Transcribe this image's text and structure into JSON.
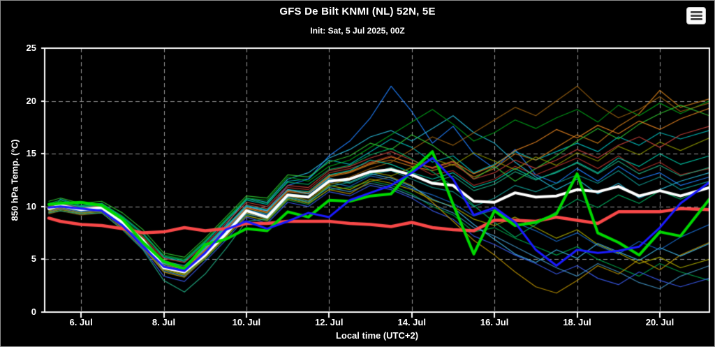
{
  "header": {
    "title": "GFS De Bilt KNMI (NL) 52N, 5E",
    "subtitle": "Init: Sat, 5 Jul 2025, 00Z"
  },
  "menu": {
    "icon": "hamburger-menu-icon"
  },
  "chart_data": {
    "type": "line",
    "title": "GFS De Bilt KNMI (NL) 52N, 5E",
    "subtitle": "Init: Sat, 5 Jul 2025, 00Z",
    "xlabel": "Local time (UTC+2)",
    "ylabel": "850 hPa Temp. (°C)",
    "background": "#000000",
    "xlim": [
      5.12,
      21.2
    ],
    "ylim": [
      0,
      25
    ],
    "x_days_of_july": [
      5.22,
      5.5,
      6,
      6.5,
      7,
      7.5,
      8,
      8.5,
      9,
      9.5,
      10,
      10.5,
      11,
      11.5,
      12,
      12.5,
      13,
      13.5,
      14,
      14.5,
      15,
      15.5,
      16,
      16.5,
      17,
      17.5,
      18,
      18.5,
      19,
      19.5,
      20,
      20.5,
      21.2
    ],
    "x_ticks": [
      {
        "day": 6,
        "label": "6. Jul"
      },
      {
        "day": 8,
        "label": "8. Jul"
      },
      {
        "day": 10,
        "label": "10. Jul"
      },
      {
        "day": 12,
        "label": "12. Jul"
      },
      {
        "day": 14,
        "label": "14. Jul"
      },
      {
        "day": 16,
        "label": "16. Jul"
      },
      {
        "day": 18,
        "label": "18. Jul"
      },
      {
        "day": 20,
        "label": "20. Jul"
      }
    ],
    "y_ticks": [
      0,
      5,
      10,
      15,
      20,
      25
    ],
    "grid": {
      "h_values": [
        5,
        10,
        15,
        20
      ],
      "v_days": [
        6,
        8,
        10,
        12,
        14,
        16,
        18,
        20
      ],
      "style": "dashed",
      "color": "#9a9a9a"
    },
    "axis_color": "#ffffff",
    "main_series": [
      {
        "name": "climate-mean",
        "color": "#f84848",
        "width": 4.5,
        "values": [
          8.9,
          8.6,
          8.3,
          8.2,
          7.9,
          7.5,
          7.6,
          8.0,
          7.7,
          7.9,
          8.4,
          8.4,
          8.6,
          8.6,
          8.6,
          8.4,
          8.3,
          8.1,
          8.5,
          8.0,
          7.8,
          7.7,
          8.7,
          8.7,
          8.6,
          9.0,
          8.7,
          8.4,
          9.5,
          9.5,
          9.5,
          9.8,
          9.7
        ]
      },
      {
        "name": "ensemble-mean",
        "color": "#ffffff",
        "width": 4,
        "values": [
          9.8,
          10.1,
          9.7,
          9.9,
          8.5,
          6.8,
          4.2,
          3.8,
          5.4,
          7.4,
          9.6,
          9.0,
          11.1,
          10.9,
          12.4,
          12.6,
          13.3,
          13.5,
          13.0,
          12.2,
          12.0,
          10.5,
          10.4,
          11.3,
          10.9,
          11.0,
          11.6,
          11.4,
          11.9,
          11.0,
          11.5,
          11.0,
          11.8
        ]
      },
      {
        "name": "operational-run",
        "color": "#00d800",
        "width": 4,
        "values": [
          10.2,
          10.3,
          10.4,
          10.1,
          8.8,
          6.6,
          4.8,
          4.1,
          6.4,
          6.9,
          7.9,
          7.7,
          9.5,
          9.0,
          10.6,
          10.5,
          11.0,
          11.2,
          13.4,
          15.2,
          10.2,
          5.5,
          9.6,
          8.2,
          8.5,
          9.3,
          13.1,
          7.5,
          6.6,
          5.4,
          7.6,
          7.2,
          10.7
        ]
      },
      {
        "name": "control-run",
        "color": "#1a1aff",
        "width": 3,
        "values": [
          9.9,
          10.0,
          9.8,
          9.6,
          8.2,
          6.2,
          4.3,
          3.9,
          5.6,
          7.8,
          8.6,
          7.9,
          8.6,
          9.4,
          9.0,
          10.6,
          11.3,
          12.0,
          13.2,
          14.6,
          12.6,
          9.2,
          9.9,
          8.5,
          5.9,
          4.4,
          5.9,
          5.6,
          5.8,
          6.2,
          8.0,
          10.3,
          12.3
        ]
      }
    ],
    "members": [
      {
        "color": "#00b8b8",
        "values": [
          9.4,
          10.7,
          10.1,
          10.3,
          9.0,
          7.4,
          5.2,
          4.8,
          6.6,
          8.6,
          10.6,
          10.2,
          12.4,
          12.6,
          14.4,
          14.0,
          15.2,
          16.4,
          15.6,
          14.2,
          14.8,
          13.2,
          14.0,
          15.2,
          14.4,
          15.2,
          16.0,
          15.2,
          16.6,
          15.8,
          17.0,
          16.4,
          17.2
        ]
      },
      {
        "color": "#2080ff",
        "values": [
          9.6,
          9.9,
          9.5,
          9.7,
          8.1,
          6.2,
          3.9,
          3.4,
          5.2,
          7.6,
          10.0,
          9.6,
          12.0,
          12.6,
          14.8,
          16.2,
          18.4,
          21.4,
          19.0,
          16.0,
          17.6,
          15.0,
          13.6,
          15.4,
          13.0,
          12.2,
          13.6,
          12.4,
          13.8,
          12.6,
          13.2,
          12.0,
          12.8
        ]
      },
      {
        "color": "#00a048",
        "values": [
          10.0,
          10.2,
          9.8,
          10.0,
          8.6,
          6.6,
          4.4,
          3.6,
          5.0,
          7.0,
          9.2,
          8.6,
          10.6,
          10.2,
          11.6,
          11.8,
          12.4,
          12.0,
          11.2,
          10.0,
          9.2,
          7.6,
          8.0,
          7.0,
          6.2,
          5.4,
          6.2,
          5.0,
          4.2,
          3.4,
          4.6,
          3.8,
          3.0
        ]
      },
      {
        "color": "#c87818",
        "values": [
          9.4,
          9.8,
          9.3,
          9.6,
          8.2,
          6.4,
          4.6,
          4.0,
          5.8,
          7.8,
          9.8,
          9.4,
          11.4,
          11.2,
          12.8,
          13.2,
          14.0,
          14.4,
          13.8,
          13.4,
          14.0,
          12.8,
          13.6,
          15.0,
          14.4,
          15.6,
          16.8,
          16.0,
          17.6,
          18.8,
          21.0,
          19.4,
          20.2
        ]
      },
      {
        "color": "#a8a800",
        "values": [
          9.7,
          10.0,
          9.6,
          9.8,
          8.3,
          6.3,
          4.0,
          3.5,
          5.3,
          7.2,
          9.4,
          8.8,
          10.8,
          10.4,
          12.0,
          11.6,
          12.6,
          12.2,
          11.6,
          10.6,
          10.0,
          8.8,
          8.2,
          9.0,
          8.0,
          7.0,
          7.8,
          6.4,
          5.6,
          4.6,
          5.2,
          4.2,
          5.0
        ]
      },
      {
        "color": "#a83028",
        "values": [
          10.1,
          10.4,
          9.9,
          10.1,
          8.8,
          7.0,
          4.9,
          4.3,
          6.0,
          8.0,
          10.2,
          9.8,
          11.8,
          11.6,
          13.2,
          13.6,
          14.2,
          14.8,
          14.0,
          13.0,
          13.4,
          12.0,
          12.6,
          13.8,
          13.0,
          13.8,
          14.6,
          13.6,
          14.8,
          13.4,
          14.2,
          13.0,
          13.6
        ]
      },
      {
        "color": "#28b8d8",
        "values": [
          9.9,
          10.3,
          9.8,
          10.1,
          8.7,
          6.9,
          4.7,
          4.2,
          6.2,
          8.2,
          10.8,
          10.4,
          12.6,
          13.2,
          14.6,
          15.4,
          16.6,
          17.2,
          16.2,
          17.4,
          18.6,
          17.0,
          16.0,
          14.2,
          12.8,
          11.6,
          12.6,
          11.2,
          12.2,
          10.8,
          11.6,
          12.4,
          13.2
        ]
      },
      {
        "color": "#00a018",
        "values": [
          10.2,
          10.5,
          10.0,
          10.2,
          8.9,
          7.2,
          5.4,
          5.0,
          6.8,
          8.8,
          10.8,
          10.6,
          12.8,
          12.4,
          13.8,
          14.4,
          15.6,
          16.8,
          18.0,
          19.2,
          17.8,
          16.2,
          17.0,
          18.2,
          17.4,
          18.4,
          19.2,
          18.0,
          19.6,
          18.6,
          19.8,
          18.8,
          20.0
        ]
      },
      {
        "color": "#3858e8",
        "values": [
          9.5,
          9.8,
          9.4,
          9.6,
          8.0,
          6.0,
          3.4,
          2.9,
          4.8,
          6.8,
          9.0,
          8.4,
          10.4,
          10.0,
          11.4,
          11.0,
          12.0,
          11.6,
          10.8,
          9.6,
          8.8,
          7.2,
          6.4,
          5.4,
          4.6,
          3.6,
          4.4,
          3.2,
          2.6,
          3.8,
          3.0,
          2.4,
          3.2
        ]
      },
      {
        "color": "#109890",
        "values": [
          10.0,
          10.1,
          9.9,
          10.0,
          8.4,
          6.7,
          4.5,
          4.0,
          5.6,
          7.7,
          9.7,
          9.3,
          11.2,
          11.0,
          12.6,
          12.2,
          13.0,
          13.4,
          12.6,
          11.8,
          11.4,
          10.0,
          10.8,
          12.0,
          11.4,
          12.2,
          13.0,
          12.2,
          13.4,
          12.0,
          12.8,
          11.6,
          12.4
        ]
      },
      {
        "color": "#986010",
        "values": [
          9.3,
          9.6,
          9.2,
          9.4,
          7.9,
          6.1,
          4.1,
          3.7,
          5.5,
          7.5,
          9.5,
          9.1,
          11.0,
          10.8,
          12.2,
          12.8,
          13.6,
          14.2,
          15.4,
          16.6,
          15.8,
          17.0,
          18.2,
          19.4,
          18.6,
          20.0,
          21.4,
          19.6,
          18.4,
          19.2,
          20.4,
          19.0,
          19.8
        ]
      },
      {
        "color": "#30c030",
        "values": [
          10.5,
          10.8,
          10.3,
          10.5,
          9.4,
          7.8,
          5.6,
          5.2,
          7.0,
          9.0,
          11.0,
          10.8,
          13.0,
          12.8,
          14.2,
          14.8,
          16.0,
          15.4,
          16.8,
          15.8,
          14.4,
          12.6,
          13.8,
          12.4,
          13.6,
          14.8,
          16.2,
          17.4,
          16.4,
          17.8,
          18.8,
          19.6,
          18.6
        ]
      },
      {
        "color": "#4090c0",
        "values": [
          9.8,
          10.0,
          9.6,
          9.8,
          8.2,
          6.5,
          4.2,
          3.8,
          5.4,
          7.3,
          9.3,
          8.9,
          10.9,
          10.5,
          11.8,
          11.4,
          12.2,
          11.8,
          11.0,
          10.2,
          9.4,
          8.0,
          7.2,
          6.2,
          5.2,
          4.2,
          3.4,
          4.6,
          3.8,
          2.8,
          2.2,
          3.4,
          4.4
        ]
      },
      {
        "color": "#b89000",
        "values": [
          9.6,
          9.9,
          9.5,
          9.7,
          8.0,
          6.1,
          3.8,
          3.3,
          5.1,
          7.1,
          9.1,
          8.7,
          10.7,
          10.3,
          11.6,
          11.2,
          12.4,
          12.8,
          12.0,
          10.4,
          8.6,
          6.8,
          5.4,
          3.8,
          2.4,
          1.8,
          3.0,
          4.4,
          3.6,
          5.0,
          4.0,
          5.4,
          6.6
        ]
      },
      {
        "color": "#00c8a8",
        "values": [
          10.1,
          10.3,
          10.0,
          10.1,
          8.6,
          6.9,
          4.8,
          4.4,
          6.1,
          8.1,
          10.1,
          9.7,
          11.6,
          11.4,
          13.0,
          13.4,
          14.4,
          14.0,
          13.2,
          12.6,
          13.2,
          11.8,
          12.4,
          13.6,
          12.6,
          13.2,
          14.2,
          13.2,
          14.6,
          13.8,
          15.0,
          14.0,
          14.8
        ]
      },
      {
        "color": "#e08020",
        "values": [
          9.9,
          10.2,
          9.7,
          10.0,
          8.5,
          6.6,
          4.4,
          4.1,
          5.9,
          7.9,
          9.9,
          9.5,
          11.5,
          11.3,
          12.9,
          13.3,
          14.1,
          14.7,
          14.1,
          13.7,
          14.3,
          13.1,
          13.9,
          15.3,
          16.1,
          17.3,
          16.5,
          17.7,
          16.9,
          18.1,
          17.3,
          18.3,
          19.3
        ]
      },
      {
        "color": "#1868c8",
        "values": [
          9.7,
          10.0,
          9.5,
          9.8,
          8.3,
          6.4,
          4.3,
          3.9,
          5.7,
          7.7,
          9.7,
          9.2,
          11.2,
          10.8,
          12.3,
          11.9,
          12.9,
          12.5,
          11.7,
          11.1,
          10.3,
          9.1,
          9.7,
          8.5,
          7.7,
          6.7,
          7.5,
          6.3,
          5.5,
          6.7,
          5.9,
          7.1,
          8.3
        ]
      },
      {
        "color": "#00b060",
        "values": [
          10.3,
          10.6,
          10.1,
          10.3,
          9.1,
          7.5,
          5.3,
          4.9,
          6.7,
          8.7,
          10.7,
          10.3,
          12.3,
          12.1,
          13.5,
          13.9,
          14.9,
          15.5,
          14.5,
          13.3,
          11.9,
          10.1,
          8.5,
          7.1,
          8.3,
          9.5,
          10.7,
          9.9,
          11.1,
          10.3,
          11.5,
          10.7,
          11.9
        ]
      },
      {
        "color": "#889000",
        "values": [
          9.5,
          9.7,
          9.4,
          9.5,
          8.1,
          6.2,
          4.0,
          3.6,
          5.2,
          7.4,
          9.6,
          9.0,
          11.0,
          10.6,
          12.1,
          12.5,
          13.3,
          12.9,
          13.7,
          14.5,
          13.9,
          15.1,
          14.3,
          13.5,
          14.7,
          13.9,
          15.1,
          14.3,
          15.7,
          14.9,
          16.1,
          15.3,
          16.5
        ]
      },
      {
        "color": "#40b0e0",
        "values": [
          9.8,
          10.1,
          9.6,
          9.9,
          8.4,
          6.7,
          4.6,
          4.2,
          6.0,
          8.0,
          10.0,
          9.6,
          11.6,
          11.2,
          12.7,
          12.3,
          13.1,
          12.7,
          11.9,
          10.7,
          9.9,
          8.3,
          6.9,
          5.5,
          4.7,
          5.9,
          5.1,
          6.5,
          5.7,
          4.9,
          6.1,
          5.3,
          6.5
        ]
      },
      {
        "color": "#c04038",
        "values": [
          10.0,
          10.3,
          9.8,
          10.1,
          8.7,
          7.1,
          5.1,
          4.7,
          6.4,
          8.4,
          10.4,
          10.0,
          12.0,
          11.8,
          13.4,
          13.8,
          14.6,
          15.2,
          14.4,
          13.6,
          14.2,
          12.6,
          13.2,
          14.4,
          13.6,
          14.4,
          15.4,
          14.6,
          15.8,
          16.6,
          15.6,
          16.8,
          17.6
        ]
      },
      {
        "color": "#20a880",
        "values": [
          9.4,
          9.6,
          9.3,
          9.4,
          7.8,
          5.9,
          3.0,
          1.9,
          3.6,
          6.0,
          8.6,
          8.8,
          10.8,
          10.4,
          11.9,
          12.3,
          13.1,
          13.7,
          12.9,
          12.3,
          12.9,
          11.5,
          12.1,
          13.3,
          12.5,
          13.3,
          14.1,
          13.1,
          14.3,
          13.1,
          13.9,
          12.9,
          13.7
        ]
      }
    ]
  }
}
